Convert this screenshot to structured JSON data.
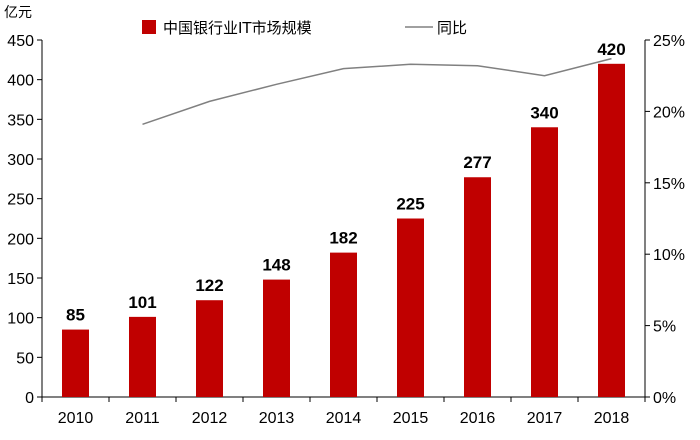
{
  "chart_data": {
    "type": "bar",
    "title": "",
    "y_unit_label": "亿元",
    "categories": [
      "2010",
      "2011",
      "2012",
      "2013",
      "2014",
      "2015",
      "2016",
      "2017",
      "2018"
    ],
    "ylim": [
      0,
      450
    ],
    "yticks": [
      "0",
      "50",
      "100",
      "150",
      "200",
      "250",
      "300",
      "350",
      "400",
      "450"
    ],
    "y2lim": [
      0,
      25
    ],
    "y2ticks": [
      "0%",
      "5%",
      "10%",
      "15%",
      "20%",
      "25%"
    ],
    "grid": false,
    "legend_position": "top",
    "series": [
      {
        "name": "中国银行业IT市场规模",
        "type": "bar",
        "axis": "left",
        "color": "#c00000",
        "values": [
          85,
          101,
          122,
          148,
          182,
          225,
          277,
          340,
          420
        ],
        "labels": [
          "85",
          "101",
          "122",
          "148",
          "182",
          "225",
          "277",
          "340",
          "420"
        ]
      },
      {
        "name": "同比",
        "type": "line",
        "axis": "right",
        "color": "#808080",
        "values": [
          null,
          19.1,
          20.7,
          21.9,
          23.0,
          23.3,
          23.2,
          22.5,
          23.7
        ]
      }
    ]
  }
}
